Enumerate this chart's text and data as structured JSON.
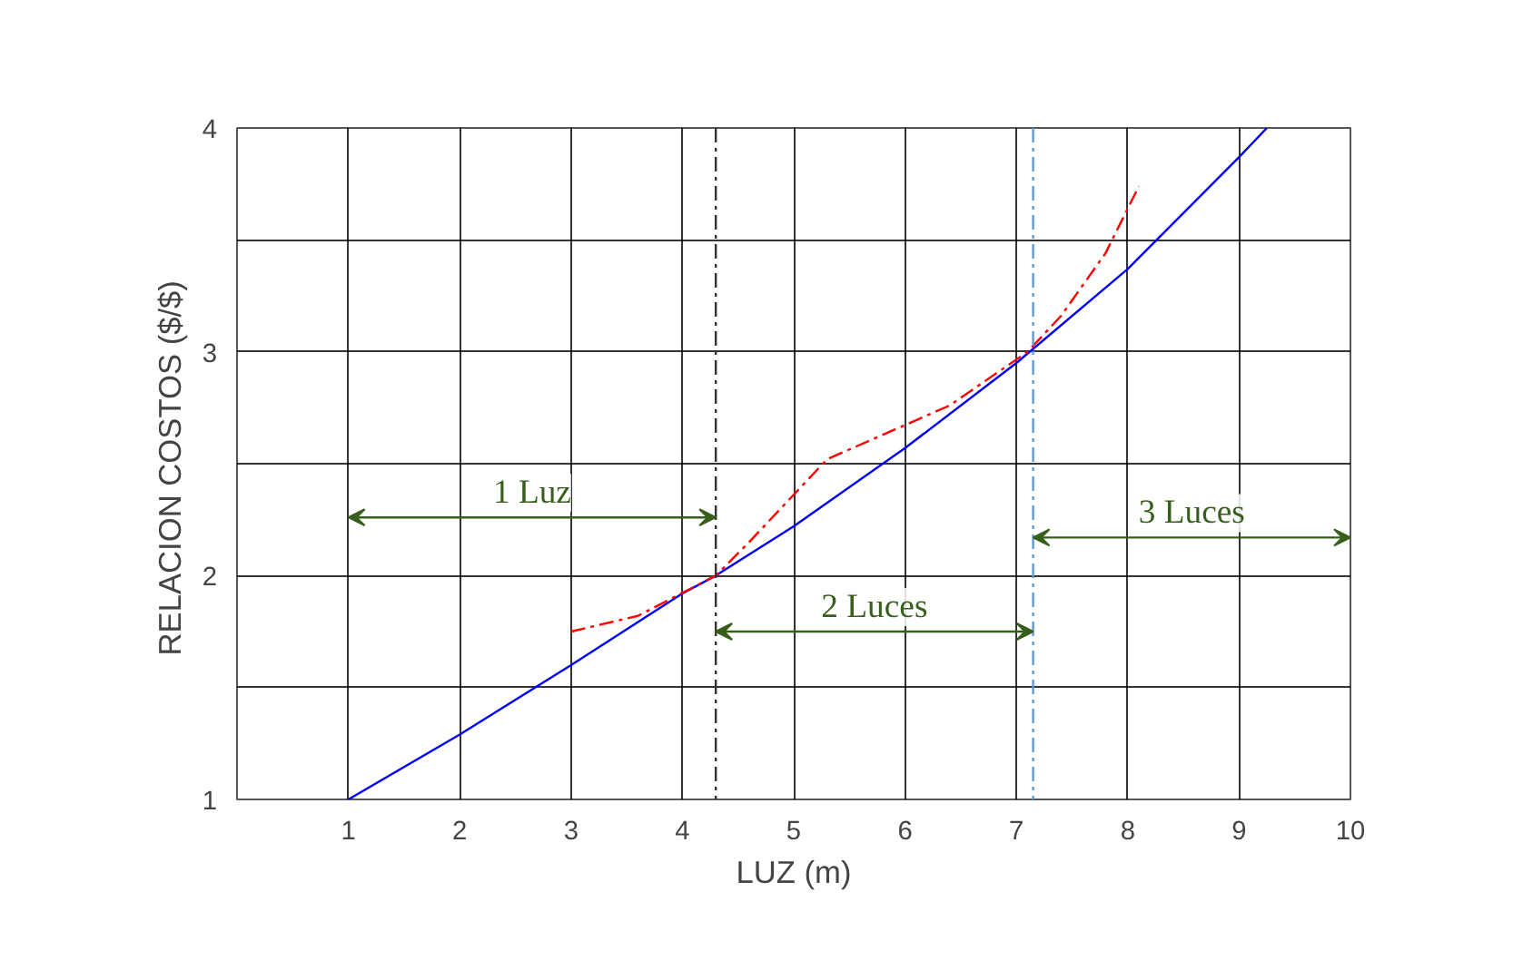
{
  "chart_data": {
    "type": "line",
    "xlabel": "LUZ (m)",
    "ylabel": "RELACION COSTOS  ($/$)",
    "xlim": [
      0,
      10
    ],
    "xticks": [
      1,
      2,
      3,
      4,
      5,
      6,
      7,
      8,
      9,
      10
    ],
    "ylim": [
      1,
      4
    ],
    "yticks": [
      1,
      {
        "value": 1.5,
        "label": null
      },
      2,
      {
        "value": 2.5,
        "label": null
      },
      3,
      {
        "value": 3.5,
        "label": null
      },
      4
    ],
    "grid": true,
    "marker": "none",
    "series": [
      {
        "color": "#0000ff",
        "line_style": "solid",
        "x": [
          1,
          2,
          3,
          4,
          4.3,
          5,
          6,
          7,
          8,
          9,
          9.25
        ],
        "values": [
          1,
          1.29,
          1.6,
          1.92,
          2.0,
          2.22,
          2.57,
          2.95,
          3.37,
          3.87,
          4.0
        ]
      },
      {
        "color": "#ff0000",
        "line_style": "dashed",
        "x": [
          3,
          3.6,
          4.3,
          4.6,
          5.3,
          6.4,
          7.1,
          7.4,
          7.8,
          8.1
        ],
        "values": [
          1.75,
          1.82,
          2.0,
          2.15,
          2.52,
          2.76,
          3.0,
          3.16,
          3.44,
          3.74
        ]
      }
    ],
    "ref_lines": [
      {
        "axis": "x",
        "value": 4.3,
        "color": "#333333",
        "line_style": "dashed"
      },
      {
        "axis": "x",
        "value": 7.15,
        "color": "#6699cc",
        "line_style": "dashed"
      }
    ],
    "annotations": [
      "1 Luz",
      "2 Luces",
      "3 Luces"
    ]
  }
}
